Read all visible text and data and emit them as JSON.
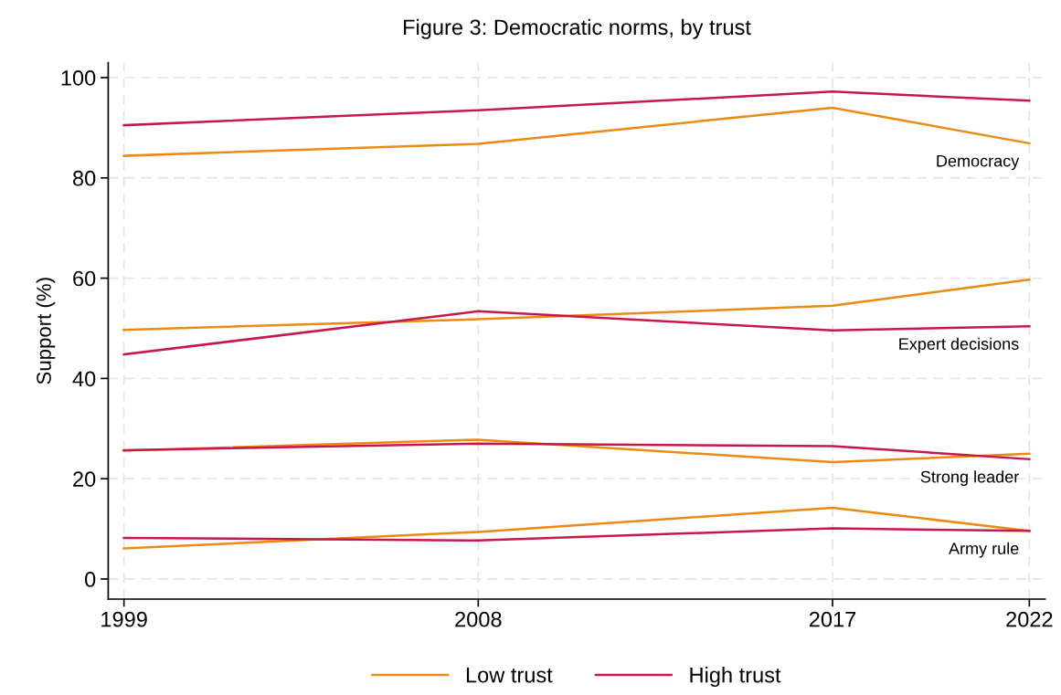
{
  "chart_data": {
    "type": "line",
    "title": "Figure 3: Democratic norms, by trust",
    "ylabel": "Support (%)",
    "x": [
      1999,
      2008,
      2017,
      2022
    ],
    "series": [
      {
        "name": "Low trust",
        "color": "#ec8a13",
        "values": [
          84.4,
          86.8,
          94.0,
          86.9
        ]
      },
      {
        "name": "High trust",
        "color": "#c8174a",
        "values": [
          90.5,
          93.5,
          97.2,
          95.4
        ]
      },
      {
        "color": "#ec8a13",
        "values": [
          49.7,
          51.8,
          54.5,
          59.7
        ]
      },
      {
        "color": "#c8174a",
        "values": [
          44.8,
          53.4,
          49.6,
          50.4
        ]
      },
      {
        "color": "#ec8a13",
        "values": [
          25.6,
          27.8,
          23.3,
          25.0
        ]
      },
      {
        "color": "#c8174a",
        "values": [
          25.7,
          27.0,
          26.5,
          23.9
        ]
      },
      {
        "color": "#ec8a13",
        "values": [
          6.1,
          9.4,
          14.2,
          9.6
        ]
      },
      {
        "color": "#c8174a",
        "values": [
          8.2,
          7.7,
          10.1,
          9.6
        ]
      }
    ],
    "annotations": [
      "Democracy",
      "Expert decisions",
      "Strong leader",
      "Army rule"
    ],
    "xlim": [
      1998.6,
      2022.4
    ],
    "ylim": [
      -4,
      103
    ],
    "xticks": [
      1999,
      2008,
      2017,
      2022
    ],
    "yticks": [
      0,
      20,
      40,
      60,
      80,
      100
    ],
    "grid": true,
    "legend": "bottom",
    "marker": "none",
    "line_style": "solid"
  }
}
